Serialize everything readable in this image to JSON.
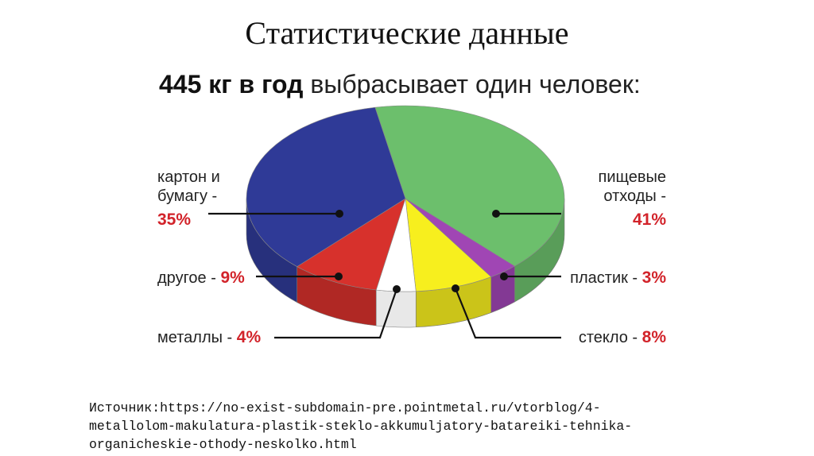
{
  "slide": {
    "title": "Статистические данные",
    "source_lines": [
      "Источник:https://no-exist-subdomain-pre.pointmetal.ru/vtorblog/4-",
      "metallolom-makulatura-plastik-steklo-akkumuljatory-batareiki-tehnika-",
      "organicheskie-othody-neskolko.html"
    ]
  },
  "chart_data": {
    "type": "pie",
    "title_bold": "445 кг в год",
    "title_rest": " выбрасывает один человек:",
    "slices": [
      {
        "key": "food",
        "label_lines": [
          "пищевые",
          "отходы -"
        ],
        "pct_text": "41%",
        "value": 41,
        "color": "#6cbf6c"
      },
      {
        "key": "plastic",
        "label_lines": [
          "пластик - "
        ],
        "pct_text": "3%",
        "value": 3,
        "color": "#a046b4"
      },
      {
        "key": "glass",
        "label_lines": [
          "стекло - "
        ],
        "pct_text": "8%",
        "value": 8,
        "color": "#f7ef1e"
      },
      {
        "key": "metals",
        "label_lines": [
          "металлы - "
        ],
        "pct_text": "4%",
        "value": 4,
        "color": "#ffffff"
      },
      {
        "key": "other",
        "label_lines": [
          "другое - "
        ],
        "pct_text": "9%",
        "value": 9,
        "color": "#d7312c"
      },
      {
        "key": "paper",
        "label_lines": [
          "картон и",
          "бумагу -"
        ],
        "pct_text": "35%",
        "value": 35,
        "color": "#2f3a97"
      }
    ]
  }
}
